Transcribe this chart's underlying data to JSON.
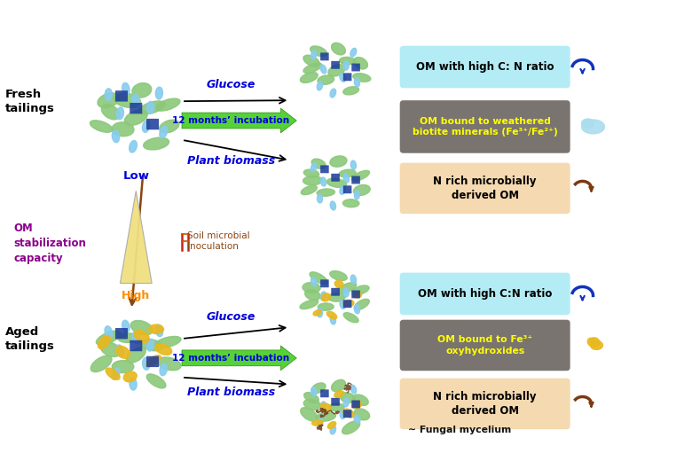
{
  "bg_color": "#ffffff",
  "fig_width": 7.8,
  "fig_height": 5.2,
  "fresh_tailings_label": "Fresh\ntailings",
  "aged_tailings_label": "Aged\ntailings",
  "om_stabilization_label": "OM\nstabilization\ncapacity",
  "low_label": "Low",
  "high_label": "High",
  "glucose_label": "Glucose",
  "incubation_label": "12 months’ incubation",
  "plant_biomass_label": "Plant biomass",
  "soil_microbial_label": "Soil microbial\ninoculation",
  "box1_text": "OM with high C: N ratio",
  "box1_color": "#b3ecf5",
  "box2_text": "OM bound to weathered\nbiotite minerals (Fe³⁺/Fe²⁺)",
  "box2_color": "#7a7470",
  "box2_text_color": "#ffff00",
  "box3_text": "N rich microbially\nderived OM",
  "box3_color": "#f5d9b0",
  "box4_text": "OM with high C:N ratio",
  "box4_color": "#b3ecf5",
  "box5_text": "OM bound to Fe³⁺\noxyhydroxides",
  "box5_color": "#7a7470",
  "box5_text_color": "#ffff00",
  "box6_text": "N rich microbially\nderived OM",
  "box6_color": "#f5d9b0",
  "fungal_label": "∼ Fungal mycelium",
  "fresh_color": "#000000",
  "aged_color": "#000000",
  "om_stab_color": "#8b008b",
  "low_color": "#0000dd",
  "high_color": "#ff8c00",
  "glucose_color": "#0000dd",
  "incubation_color": "#0000dd",
  "plant_biomass_color": "#0000dd",
  "soil_microbial_color": "#8b4513",
  "box_text_color": "#000000",
  "green_arrow_color": "#44bb22",
  "brown_arrow_color": "#8b4513"
}
